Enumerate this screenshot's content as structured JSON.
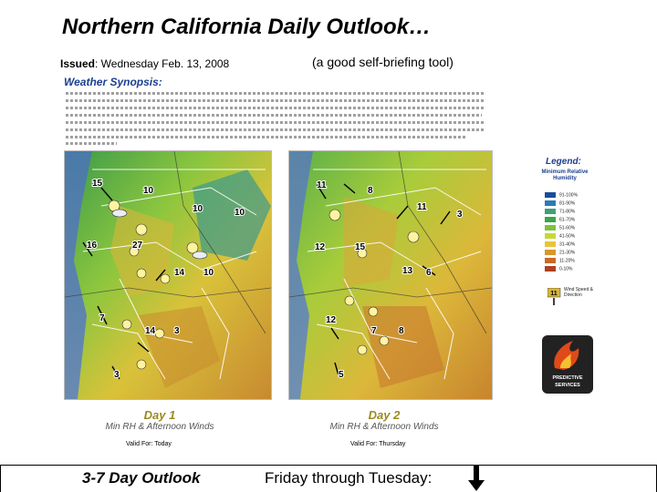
{
  "slide": {
    "title": "Northern California Daily Outlook…",
    "issued_label": "Issued",
    "issued_value": ": Wednesday Feb. 13, 2008",
    "tagline": "(a good self-briefing tool)"
  },
  "synopsis": {
    "title": "Weather Synopsis:"
  },
  "day1": {
    "title": "Day 1",
    "subtitle": "Min RH & Afternoon Winds",
    "valid": "Valid For:   Today",
    "winds": [
      "15",
      "10",
      "10",
      "10",
      "16",
      "27",
      "14",
      "10",
      "7",
      "14",
      "3",
      "3"
    ]
  },
  "day2": {
    "title": "Day 2",
    "subtitle": "Min RH & Afternoon Winds",
    "valid": "Valid For:   Thursday",
    "winds": [
      "11",
      "8",
      "11",
      "3",
      "12",
      "15",
      "13",
      "6",
      "12",
      "7",
      "8",
      "5"
    ]
  },
  "legend": {
    "title": "Legend:",
    "subtitle": "Minimum Relative Humidity",
    "ranges": [
      {
        "label": "91-100%",
        "color": "#1a4d9b"
      },
      {
        "label": "81-90%",
        "color": "#2a7ab8"
      },
      {
        "label": "71-80%",
        "color": "#3fa07a"
      },
      {
        "label": "61-70%",
        "color": "#3aa64a"
      },
      {
        "label": "51-60%",
        "color": "#7cc43a"
      },
      {
        "label": "41-50%",
        "color": "#c8d836"
      },
      {
        "label": "31-40%",
        "color": "#e8c43a"
      },
      {
        "label": "21-30%",
        "color": "#d8962e"
      },
      {
        "label": "11-20%",
        "color": "#c86a28"
      },
      {
        "label": "0-10%",
        "color": "#b04020"
      }
    ],
    "wind_value": "11",
    "wind_label": "Wind Speed & Direction"
  },
  "logo": {
    "text": "PREDICTIVE SERVICES"
  },
  "footer": {
    "outlook": "3-7 Day Outlook",
    "range": "Friday through Tuesday:"
  }
}
